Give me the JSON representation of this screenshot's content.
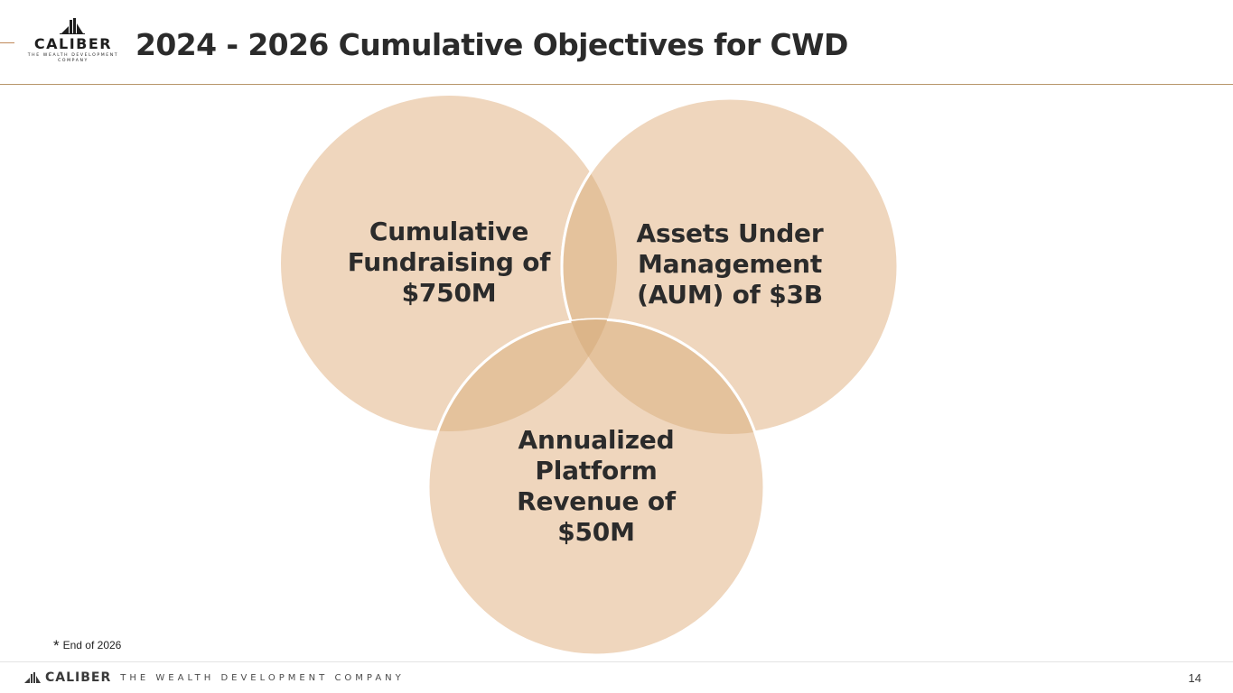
{
  "header": {
    "title": "2024 - 2026 Cumulative Objectives for CWD",
    "logo": {
      "word": "CALIBER",
      "tagline": "THE WEALTH DEVELOPMENT COMPANY",
      "mark_icon": "caliber-building-icon"
    }
  },
  "diagram": {
    "type": "venn",
    "fill_color": "#efd6bd",
    "overlap_color": "#e3bf96",
    "outline_color": "#ffffff",
    "circles": [
      {
        "lines": [
          "Cumulative",
          "Fundraising of",
          "$750M"
        ]
      },
      {
        "lines": [
          "Assets Under",
          "Management",
          "(AUM) of $3B"
        ]
      },
      {
        "lines": [
          "Annualized",
          "Platform",
          "Revenue of",
          "$50M"
        ]
      }
    ]
  },
  "footnote": {
    "marker": "*",
    "text": "End of 2026"
  },
  "footer": {
    "word": "CALIBER",
    "tagline": "THE WEALTH DEVELOPMENT COMPANY",
    "page_number": "14"
  }
}
